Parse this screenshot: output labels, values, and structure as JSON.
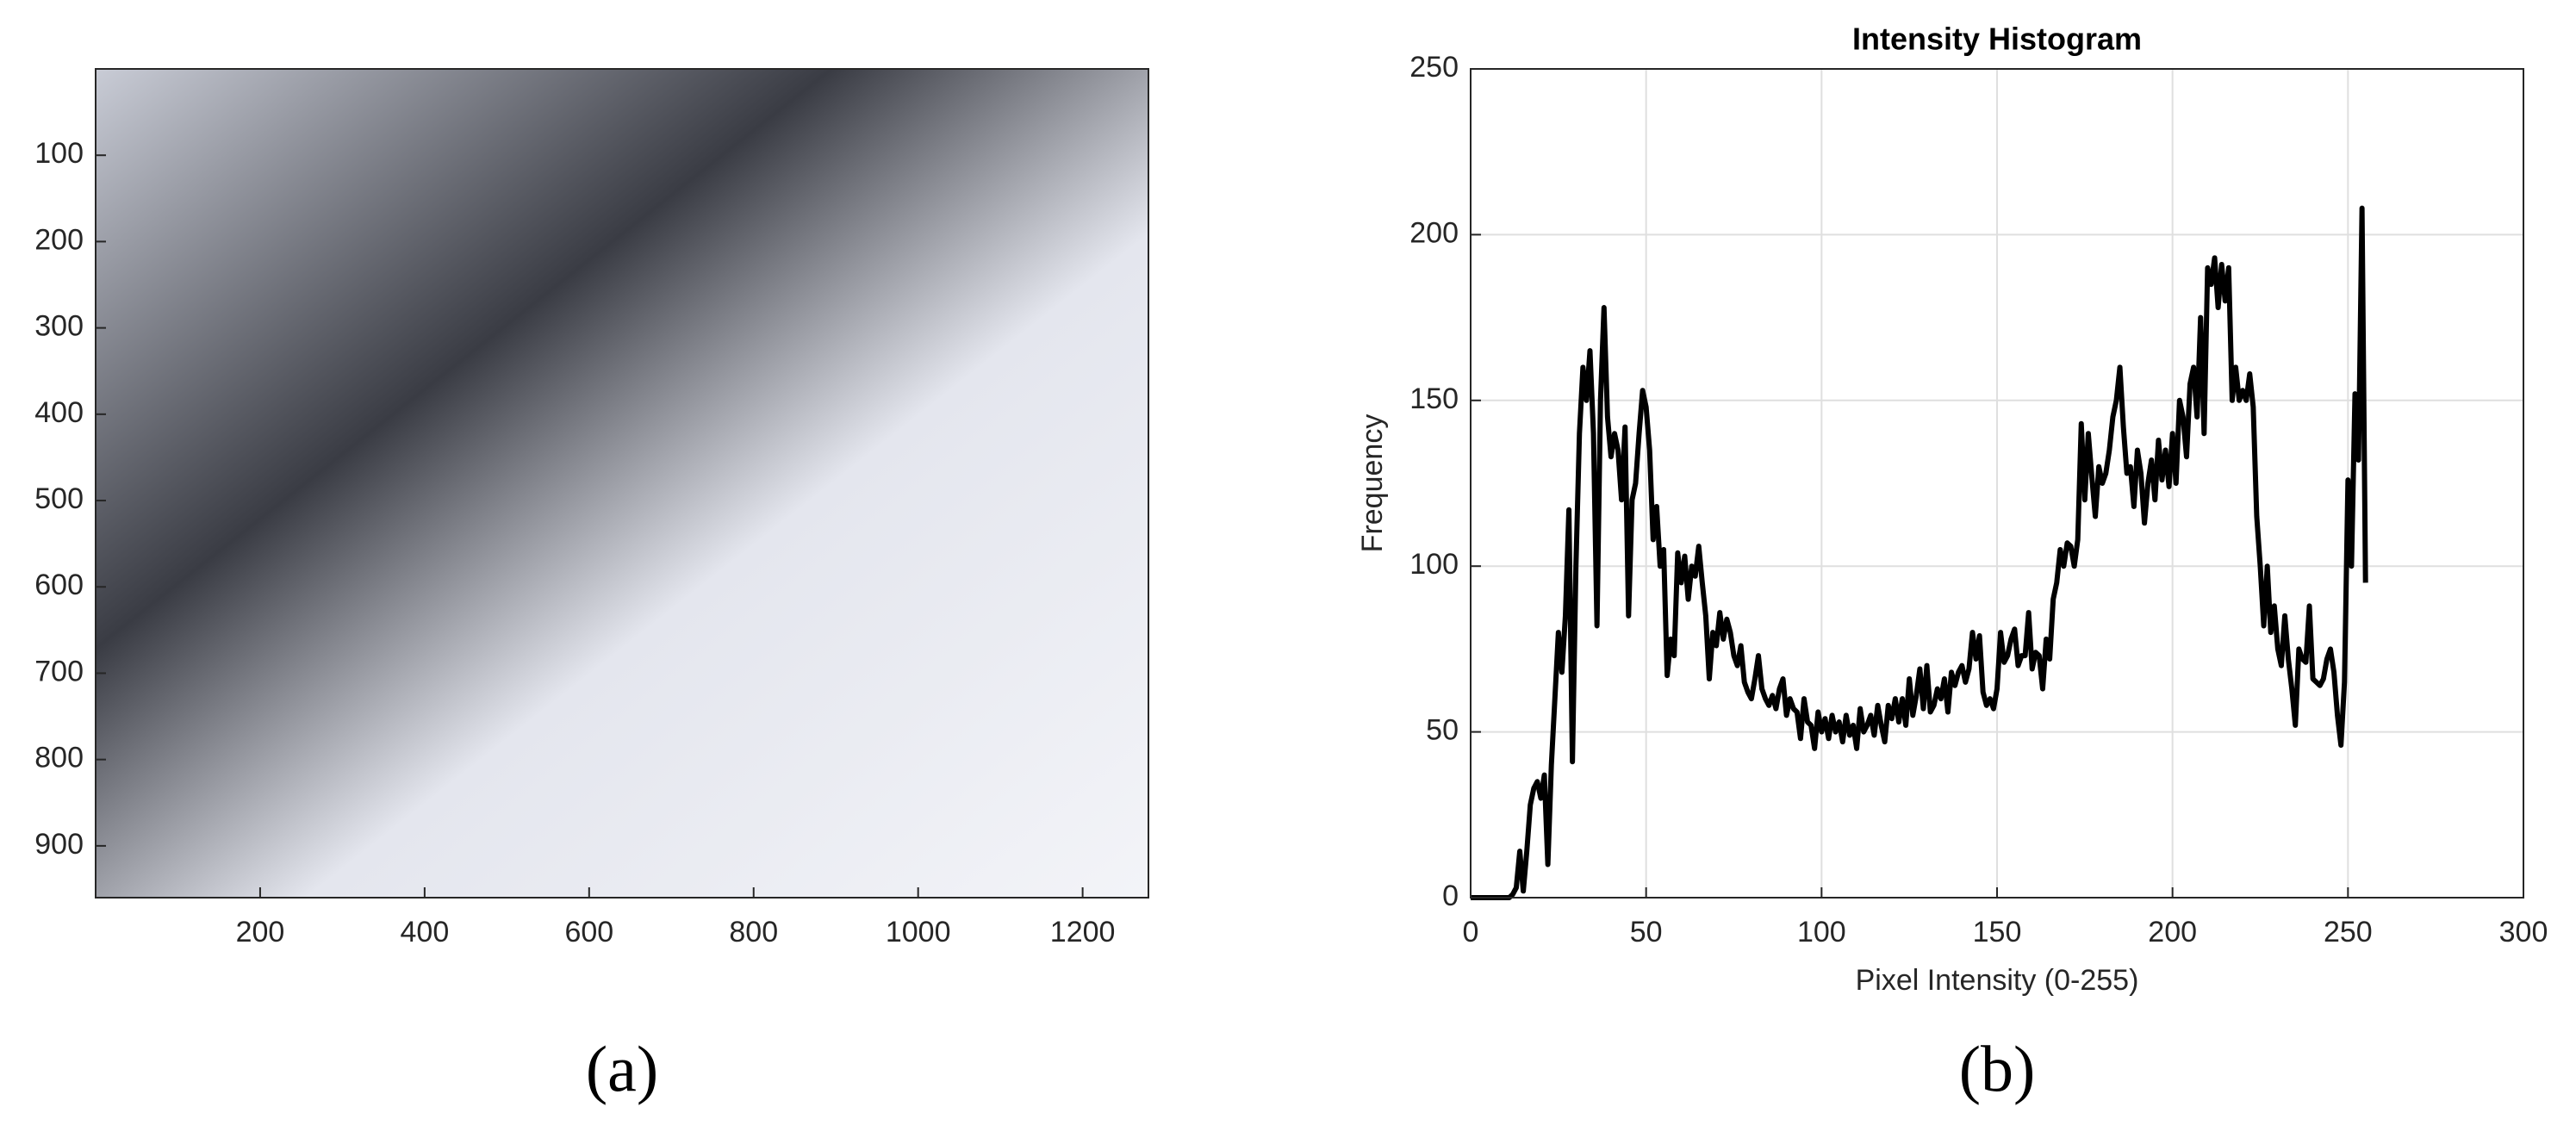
{
  "chart_data": [
    {
      "type": "image",
      "caption": "(a)",
      "xlim": [
        0,
        1280
      ],
      "xticks": [
        200,
        400,
        600,
        800,
        1000,
        1200
      ],
      "ylim": [
        960,
        0
      ],
      "yticks": [
        100,
        200,
        300,
        400,
        500,
        600,
        700,
        800,
        900
      ],
      "grid": false
    },
    {
      "type": "line",
      "caption": "(b)",
      "title": "Intensity Histogram",
      "x_label": "Pixel Intensity (0-255)",
      "y_label": "Frequency",
      "color": "#000000",
      "grid": true,
      "xlim": [
        0,
        300
      ],
      "xticks": [
        0,
        50,
        100,
        150,
        200,
        250,
        300
      ],
      "ylim": [
        0,
        250
      ],
      "yticks": [
        0,
        50,
        100,
        150,
        200,
        250
      ],
      "x": [
        0,
        1,
        2,
        3,
        4,
        5,
        6,
        7,
        8,
        9,
        10,
        11,
        12,
        13,
        14,
        15,
        16,
        17,
        18,
        19,
        20,
        21,
        22,
        23,
        24,
        25,
        26,
        27,
        28,
        29,
        30,
        31,
        32,
        33,
        34,
        35,
        36,
        37,
        38,
        39,
        40,
        41,
        42,
        43,
        44,
        45,
        46,
        47,
        48,
        49,
        50,
        51,
        52,
        53,
        54,
        55,
        56,
        57,
        58,
        59,
        60,
        61,
        62,
        63,
        64,
        65,
        66,
        67,
        68,
        69,
        70,
        71,
        72,
        73,
        74,
        75,
        76,
        77,
        78,
        79,
        80,
        81,
        82,
        83,
        84,
        85,
        86,
        87,
        88,
        89,
        90,
        91,
        92,
        93,
        94,
        95,
        96,
        97,
        98,
        99,
        100,
        101,
        102,
        103,
        104,
        105,
        106,
        107,
        108,
        109,
        110,
        111,
        112,
        113,
        114,
        115,
        116,
        117,
        118,
        119,
        120,
        121,
        122,
        123,
        124,
        125,
        126,
        127,
        128,
        129,
        130,
        131,
        132,
        133,
        134,
        135,
        136,
        137,
        138,
        139,
        140,
        141,
        142,
        143,
        144,
        145,
        146,
        147,
        148,
        149,
        150,
        151,
        152,
        153,
        154,
        155,
        156,
        157,
        158,
        159,
        160,
        161,
        162,
        163,
        164,
        165,
        166,
        167,
        168,
        169,
        170,
        171,
        172,
        173,
        174,
        175,
        176,
        177,
        178,
        179,
        180,
        181,
        182,
        183,
        184,
        185,
        186,
        187,
        188,
        189,
        190,
        191,
        192,
        193,
        194,
        195,
        196,
        197,
        198,
        199,
        200,
        201,
        202,
        203,
        204,
        205,
        206,
        207,
        208,
        209,
        210,
        211,
        212,
        213,
        214,
        215,
        216,
        217,
        218,
        219,
        220,
        221,
        222,
        223,
        224,
        225,
        226,
        227,
        228,
        229,
        230,
        231,
        232,
        233,
        234,
        235,
        236,
        237,
        238,
        239,
        240,
        241,
        242,
        243,
        244,
        245,
        246,
        247,
        248,
        249,
        250,
        251,
        252,
        253,
        254,
        255
      ],
      "values": [
        0,
        0,
        0,
        0,
        0,
        0,
        0,
        0,
        0,
        0,
        0,
        0,
        1,
        3,
        14,
        2,
        14,
        28,
        33,
        35,
        30,
        37,
        10,
        40,
        60,
        80,
        68,
        85,
        117,
        41,
        100,
        140,
        160,
        150,
        165,
        140,
        82,
        150,
        178,
        145,
        133,
        140,
        135,
        120,
        142,
        85,
        120,
        125,
        140,
        153,
        148,
        135,
        108,
        118,
        100,
        105,
        67,
        78,
        73,
        104,
        95,
        103,
        90,
        100,
        97,
        106,
        95,
        85,
        66,
        80,
        76,
        86,
        78,
        84,
        80,
        73,
        70,
        76,
        65,
        62,
        60,
        66,
        73,
        63,
        60,
        58,
        61,
        57,
        63,
        66,
        55,
        60,
        57,
        56,
        48,
        60,
        53,
        52,
        45,
        56,
        50,
        54,
        48,
        55,
        50,
        53,
        47,
        55,
        49,
        52,
        45,
        57,
        50,
        52,
        55,
        49,
        58,
        52,
        47,
        58,
        54,
        60,
        53,
        60,
        52,
        66,
        55,
        61,
        69,
        57,
        70,
        56,
        58,
        63,
        60,
        66,
        56,
        68,
        64,
        68,
        70,
        65,
        69,
        80,
        72,
        79,
        62,
        58,
        60,
        57,
        63,
        80,
        71,
        73,
        78,
        81,
        70,
        73,
        73,
        86,
        69,
        74,
        73,
        63,
        78,
        72,
        90,
        95,
        105,
        100,
        107,
        106,
        100,
        108,
        143,
        120,
        140,
        127,
        115,
        130,
        125,
        128,
        135,
        145,
        150,
        160,
        142,
        128,
        130,
        118,
        135,
        128,
        113,
        125,
        132,
        120,
        138,
        126,
        135,
        124,
        140,
        125,
        150,
        145,
        133,
        155,
        160,
        145,
        175,
        140,
        190,
        185,
        193,
        178,
        191,
        180,
        190,
        150,
        160,
        150,
        153,
        150,
        158,
        148,
        115,
        100,
        82,
        100,
        80,
        88,
        75,
        70,
        85,
        72,
        63,
        52,
        75,
        72,
        71,
        88,
        66,
        65,
        64,
        66,
        72,
        75,
        68,
        55,
        46,
        65,
        126,
        100,
        152,
        132,
        208,
        95
      ]
    }
  ]
}
